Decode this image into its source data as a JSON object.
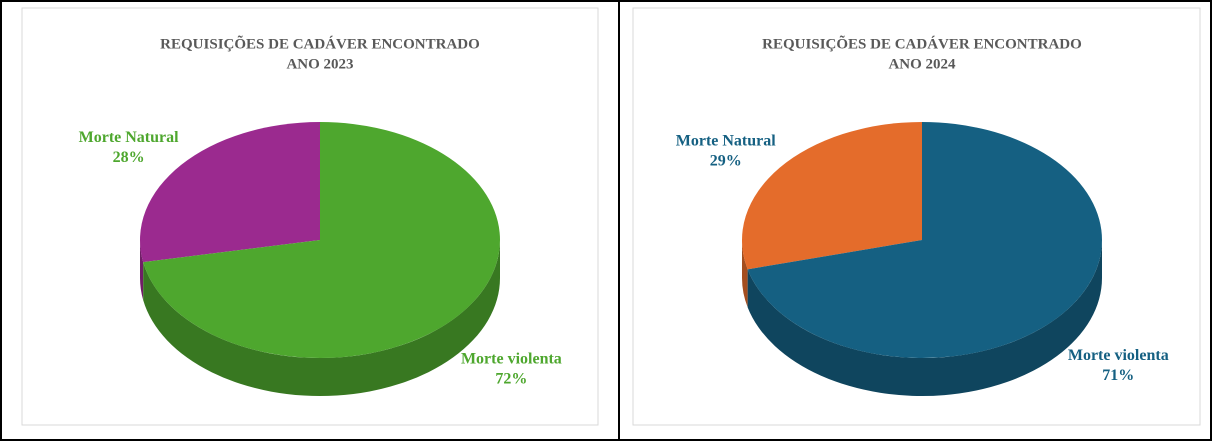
{
  "chart_data": [
    {
      "type": "pie",
      "title": "REQUISIÇÕES DE CADÁVER ENCONTRADO",
      "subtitle": "ANO 2023",
      "categories": [
        "Morte Natural",
        "Morte violenta"
      ],
      "values": [
        28,
        72
      ],
      "value_labels": [
        "28%",
        "72%"
      ],
      "colors": [
        "#9b2a8f",
        "#4ea72e"
      ],
      "label_color": "#4ea72e"
    },
    {
      "type": "pie",
      "title": "REQUISIÇÕES DE CADÁVER ENCONTRADO",
      "subtitle": "ANO 2024",
      "categories": [
        "Morte Natural",
        "Morte violenta"
      ],
      "values": [
        29,
        71
      ],
      "value_labels": [
        "29%",
        "71%"
      ],
      "colors": [
        "#e46c2b",
        "#156082"
      ],
      "label_color": "#156082"
    }
  ]
}
